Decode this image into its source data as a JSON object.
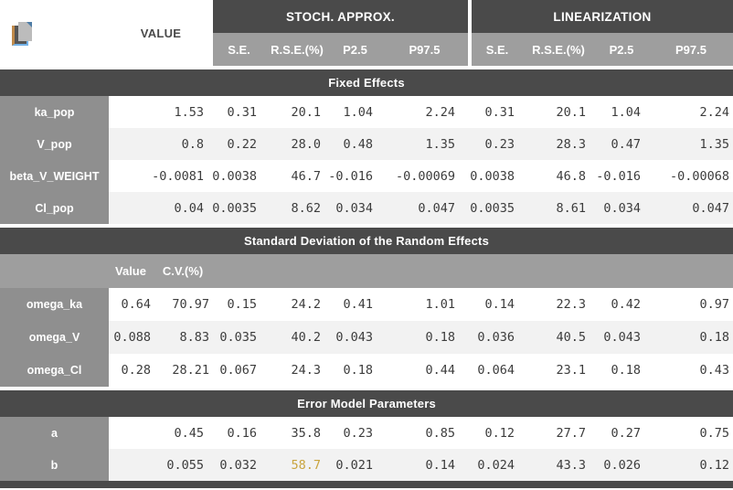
{
  "colors": {
    "band_dark": "#4a4a4a",
    "subheader_gray": "#9e9e9e",
    "label_gray": "#8f8f8f",
    "row_alt": "#f2f2f2",
    "highlight_amber": "#c9a43e"
  },
  "icons": {
    "copy": "copy-icon"
  },
  "header": {
    "value_label": "VALUE",
    "groups": [
      {
        "label": "STOCH. APPROX.",
        "subcolumns": [
          "S.E.",
          "R.S.E.(%)",
          "P2.5",
          "P97.5"
        ]
      },
      {
        "label": "LINEARIZATION",
        "subcolumns": [
          "S.E.",
          "R.S.E.(%)",
          "P2.5",
          "P97.5"
        ]
      }
    ]
  },
  "sections": [
    {
      "title": "Fixed Effects",
      "rows": [
        {
          "label": "ka_pop",
          "value": "1.53",
          "sa": [
            "0.31",
            "20.1",
            "1.04",
            "2.24"
          ],
          "lin": [
            "0.31",
            "20.1",
            "1.04",
            "2.24"
          ]
        },
        {
          "label": "V_pop",
          "value": "0.8",
          "sa": [
            "0.22",
            "28.0",
            "0.48",
            "1.35"
          ],
          "lin": [
            "0.23",
            "28.3",
            "0.47",
            "1.35"
          ]
        },
        {
          "label": "beta_V_WEIGHT",
          "value": "-0.0081",
          "sa": [
            "0.0038",
            "46.7",
            "-0.016",
            "-0.00069"
          ],
          "lin": [
            "0.0038",
            "46.8",
            "-0.016",
            "-0.00068"
          ]
        },
        {
          "label": "Cl_pop",
          "value": "0.04",
          "sa": [
            "0.0035",
            "8.62",
            "0.034",
            "0.047"
          ],
          "lin": [
            "0.0035",
            "8.61",
            "0.034",
            "0.047"
          ]
        }
      ]
    },
    {
      "title": "Standard Deviation of the Random Effects",
      "subheader": {
        "value": "Value",
        "cv": "C.V.(%)"
      },
      "rows": [
        {
          "label": "omega_ka",
          "value": "0.64",
          "cv": "70.97",
          "sa": [
            "0.15",
            "24.2",
            "0.41",
            "1.01"
          ],
          "lin": [
            "0.14",
            "22.3",
            "0.42",
            "0.97"
          ]
        },
        {
          "label": "omega_V",
          "value": "0.088",
          "cv": "8.83",
          "sa": [
            "0.035",
            "40.2",
            "0.043",
            "0.18"
          ],
          "lin": [
            "0.036",
            "40.5",
            "0.043",
            "0.18"
          ]
        },
        {
          "label": "omega_Cl",
          "value": "0.28",
          "cv": "28.21",
          "sa": [
            "0.067",
            "24.3",
            "0.18",
            "0.44"
          ],
          "lin": [
            "0.064",
            "23.1",
            "0.18",
            "0.43"
          ]
        }
      ]
    },
    {
      "title": "Error Model Parameters",
      "rows": [
        {
          "label": "a",
          "value": "0.45",
          "sa": [
            "0.16",
            "35.8",
            "0.23",
            "0.85"
          ],
          "lin": [
            "0.12",
            "27.7",
            "0.27",
            "0.75"
          ]
        },
        {
          "label": "b",
          "value": "0.055",
          "sa": [
            "0.032",
            "58.7",
            "0.021",
            "0.14"
          ],
          "lin": [
            "0.024",
            "43.3",
            "0.026",
            "0.12"
          ],
          "highlight": {
            "sa": [
              1
            ]
          }
        }
      ]
    }
  ]
}
